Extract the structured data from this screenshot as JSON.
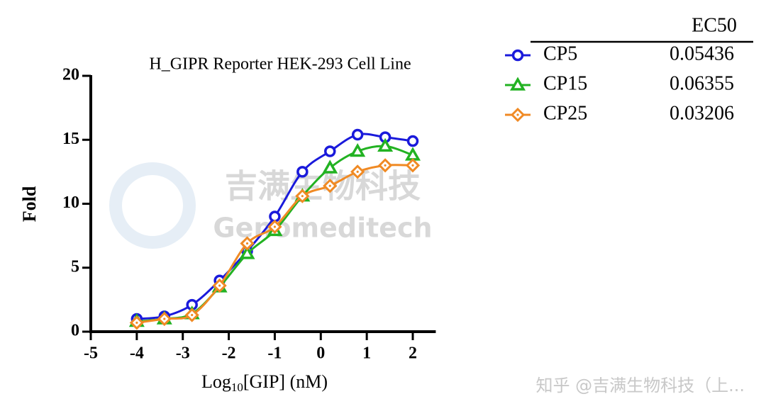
{
  "chart_data": {
    "type": "line",
    "title": "H_GIPR Reporter HEK-293 Cell Line",
    "x_label": {
      "main": "Log",
      "sub": "10",
      "rest": "[GIP] (nM)"
    },
    "y_label": "Fold",
    "legend_header": "EC50",
    "x": [
      -4,
      -3.4,
      -2.8,
      -2.2,
      -1.6,
      -1,
      -0.4,
      0.2,
      0.8,
      1.4,
      2
    ],
    "xlim": [
      -5,
      2.5
    ],
    "xticks": [
      -5,
      -4,
      -3,
      -2,
      -1,
      0,
      1,
      2
    ],
    "ylim": [
      0,
      20
    ],
    "yticks": [
      0,
      5,
      10,
      15,
      20
    ],
    "series": [
      {
        "name": "CP5",
        "color": "#1a1adb",
        "marker": "circle",
        "ec50": 0.05436,
        "values": [
          1.0,
          1.2,
          2.1,
          4.0,
          6.3,
          9.0,
          12.5,
          14.1,
          15.4,
          15.2,
          14.9
        ]
      },
      {
        "name": "CP15",
        "color": "#22b222",
        "marker": "triangle",
        "ec50": 0.06355,
        "values": [
          0.8,
          1.0,
          1.4,
          3.5,
          6.1,
          7.9,
          10.6,
          12.8,
          14.1,
          14.5,
          13.8
        ]
      },
      {
        "name": "CP25",
        "color": "#f08a24",
        "marker": "diamond",
        "ec50": 0.03206,
        "values": [
          0.7,
          1.0,
          1.3,
          3.6,
          6.9,
          8.2,
          10.6,
          11.4,
          12.5,
          13.0,
          13.0
        ]
      }
    ]
  },
  "watermark": {
    "cn": "吉满生物科技",
    "en": "Genomeditech",
    "footer": "知乎 @吉满生物科技（上..."
  }
}
